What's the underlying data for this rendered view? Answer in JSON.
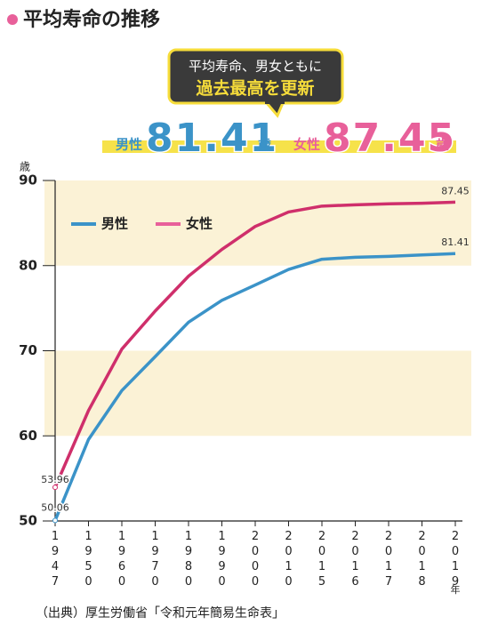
{
  "chart_data": {
    "type": "line",
    "title": "平均寿命の推移",
    "callout": [
      "平均寿命、男女ともに",
      "過去最高を更新"
    ],
    "headline": [
      {
        "label": "男性",
        "value": 81.41,
        "unit": "歳",
        "color": "#3b93c8"
      },
      {
        "label": "女性",
        "value": 87.45,
        "unit": "歳",
        "color": "#e8609a"
      }
    ],
    "y_unit": "歳",
    "x_unit": "年",
    "categories": [
      "1947",
      "1950",
      "1960",
      "1970",
      "1980",
      "1990",
      "2000",
      "2010",
      "2015",
      "2016",
      "2017",
      "2018",
      "2019"
    ],
    "series": [
      {
        "name": "男性",
        "color": "#3b93c8",
        "values": [
          50.06,
          59.57,
          65.32,
          69.31,
          73.35,
          75.92,
          77.72,
          79.55,
          80.75,
          80.98,
          81.09,
          81.25,
          81.41
        ]
      },
      {
        "name": "女性",
        "color": "#cf2f6b",
        "values": [
          53.96,
          62.97,
          70.19,
          74.66,
          78.76,
          81.9,
          84.6,
          86.3,
          86.99,
          87.14,
          87.26,
          87.32,
          87.45
        ]
      }
    ],
    "ylim": [
      50,
      90
    ],
    "yticks": [
      50,
      60,
      70,
      80,
      90
    ],
    "bands": [
      [
        60,
        70
      ],
      [
        80,
        90
      ]
    ],
    "band_color": "#fbf2d6",
    "data_labels": "ends",
    "legend": "upper-left",
    "source": "（出典）厚生労働省「令和元年簡易生命表」"
  }
}
